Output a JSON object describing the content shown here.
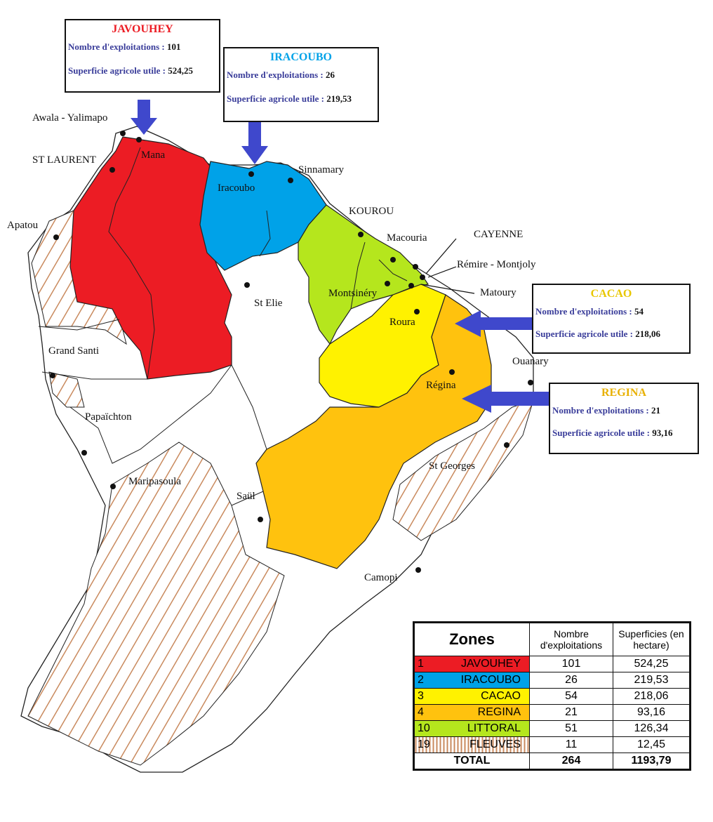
{
  "colors": {
    "javouhey": "#ec1c24",
    "iracoubo": "#00a2e8",
    "cacao": "#fff200",
    "regina": "#ffc20e",
    "littoral": "#b5e61d",
    "fleuves_hatch": "#c98a5e",
    "arrow": "#3f48cc",
    "callout_label": "#3a3d9a"
  },
  "communes": [
    "Awala - Yalimapo",
    "Mana",
    "ST LAURENT",
    "Apatou",
    "Iracoubo",
    "Sinnamary",
    "KOUROU",
    "Macouria",
    "CAYENNE",
    "Rémire - Montjoly",
    "Matoury",
    "Montsinéry",
    "St Elie",
    "Roura",
    "Régina",
    "Ouanary",
    "Grand Santi",
    "Papaïchton",
    "Maripasoula",
    "Saül",
    "St Georges",
    "Camopi"
  ],
  "callouts": {
    "javouhey": {
      "title": "JAVOUHEY",
      "l1": "Nombre d'exploitations : ",
      "v1": "101",
      "l2": "Superficie agricole utile : ",
      "v2": "524,25"
    },
    "iracoubo": {
      "title": "IRACOUBO",
      "l1": "Nombre d'exploitations : ",
      "v1": "26",
      "l2": "Superficie agricole utile : ",
      "v2": "219,53"
    },
    "cacao": {
      "title": "CACAO",
      "l1": "Nombre d'exploitations : ",
      "v1": "54",
      "l2": "Superficie agricole utile : ",
      "v2": "218,06"
    },
    "regina": {
      "title": "REGINA",
      "l1": "Nombre d'exploitations : ",
      "v1": "21",
      "l2": "Superficie agricole utile : ",
      "v2": "93,16"
    }
  },
  "table": {
    "headers": {
      "zones": "Zones",
      "nombre": "Nombre d'exploitations",
      "superficies": "Superficies (en hectare)"
    },
    "rows": [
      {
        "num": "1",
        "zone": "JAVOUHEY",
        "nombre": "101",
        "superficie": "524,25",
        "color": "#ec1c24"
      },
      {
        "num": "2",
        "zone": "IRACOUBO",
        "nombre": "26",
        "superficie": "219,53",
        "color": "#00a2e8"
      },
      {
        "num": "3",
        "zone": "CACAO",
        "nombre": "54",
        "superficie": "218,06",
        "color": "#fff200"
      },
      {
        "num": "4",
        "zone": "REGINA",
        "nombre": "21",
        "superficie": "93,16",
        "color": "#ffc20e"
      },
      {
        "num": "10",
        "zone": "LITTORAL",
        "nombre": "51",
        "superficie": "126,34",
        "color": "#b5e61d"
      },
      {
        "num": "19",
        "zone": "FLEUVES",
        "nombre": "11",
        "superficie": "12,45",
        "color": "hatch"
      }
    ],
    "total": {
      "label": "TOTAL",
      "nombre": "264",
      "superficie": "1193,79"
    }
  }
}
